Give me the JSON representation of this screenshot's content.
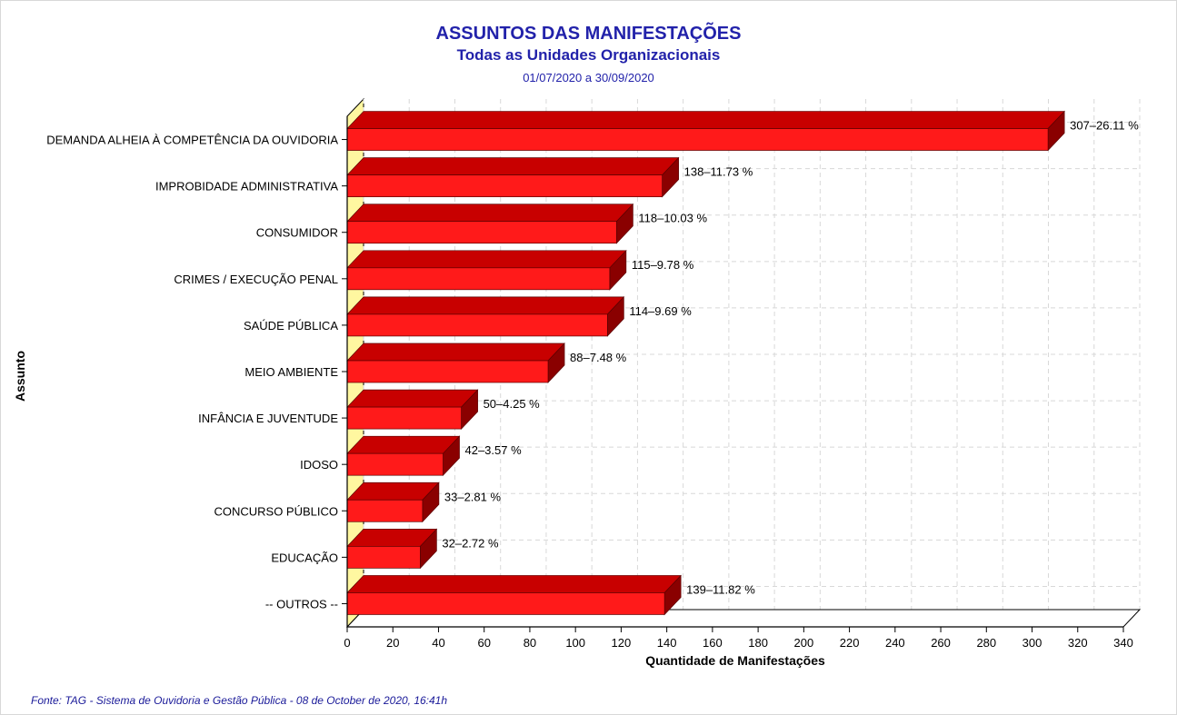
{
  "header": {
    "title": "ASSUNTOS DAS MANIFESTAÇÕES",
    "subtitle": "Todas as Unidades Organizacionais",
    "period": "01/07/2020 a 30/09/2020"
  },
  "footer": {
    "source": "Fonte: TAG - Sistema de Ouvidoria e Gestão Pública -  08  de  October de 2020, 16:41h"
  },
  "colors": {
    "bar_front": "#ff1a1a",
    "bar_top": "#c80000",
    "bar_side": "#8a0000",
    "back_wall": "#fff7a0",
    "title": "#2222aa",
    "grid": "#d8d8d8"
  },
  "chart_data": {
    "type": "bar",
    "orientation": "horizontal",
    "style": "3d",
    "title": "ASSUNTOS DAS MANIFESTAÇÕES",
    "subtitle": "Todas as Unidades Organizacionais",
    "xlabel": "Quantidade de Manifestações",
    "ylabel": "Assunto",
    "xlim": [
      0,
      340
    ],
    "xticks": [
      0,
      20,
      40,
      60,
      80,
      100,
      120,
      140,
      160,
      180,
      200,
      220,
      240,
      260,
      280,
      300,
      320,
      340
    ],
    "grid": true,
    "categories": [
      "DEMANDA ALHEIA À COMPETÊNCIA DA OUVIDORIA",
      "IMPROBIDADE ADMINISTRATIVA",
      "CONSUMIDOR",
      "CRIMES / EXECUÇÃO PENAL",
      "SAÚDE PÚBLICA",
      "MEIO AMBIENTE",
      "INFÂNCIA E JUVENTUDE",
      "IDOSO",
      "CONCURSO PÚBLICO",
      "EDUCAÇÃO",
      "-- OUTROS --"
    ],
    "values": [
      307,
      138,
      118,
      115,
      114,
      88,
      50,
      42,
      33,
      32,
      139
    ],
    "data_labels": [
      "307–26.11 %",
      "138–11.73 %",
      "118–10.03 %",
      "115–9.78 %",
      "114–9.69 %",
      "88–7.48 %",
      "50–4.25 %",
      "42–3.57 %",
      "33–2.81 %",
      "32–2.72 %",
      "139–11.82 %"
    ]
  }
}
